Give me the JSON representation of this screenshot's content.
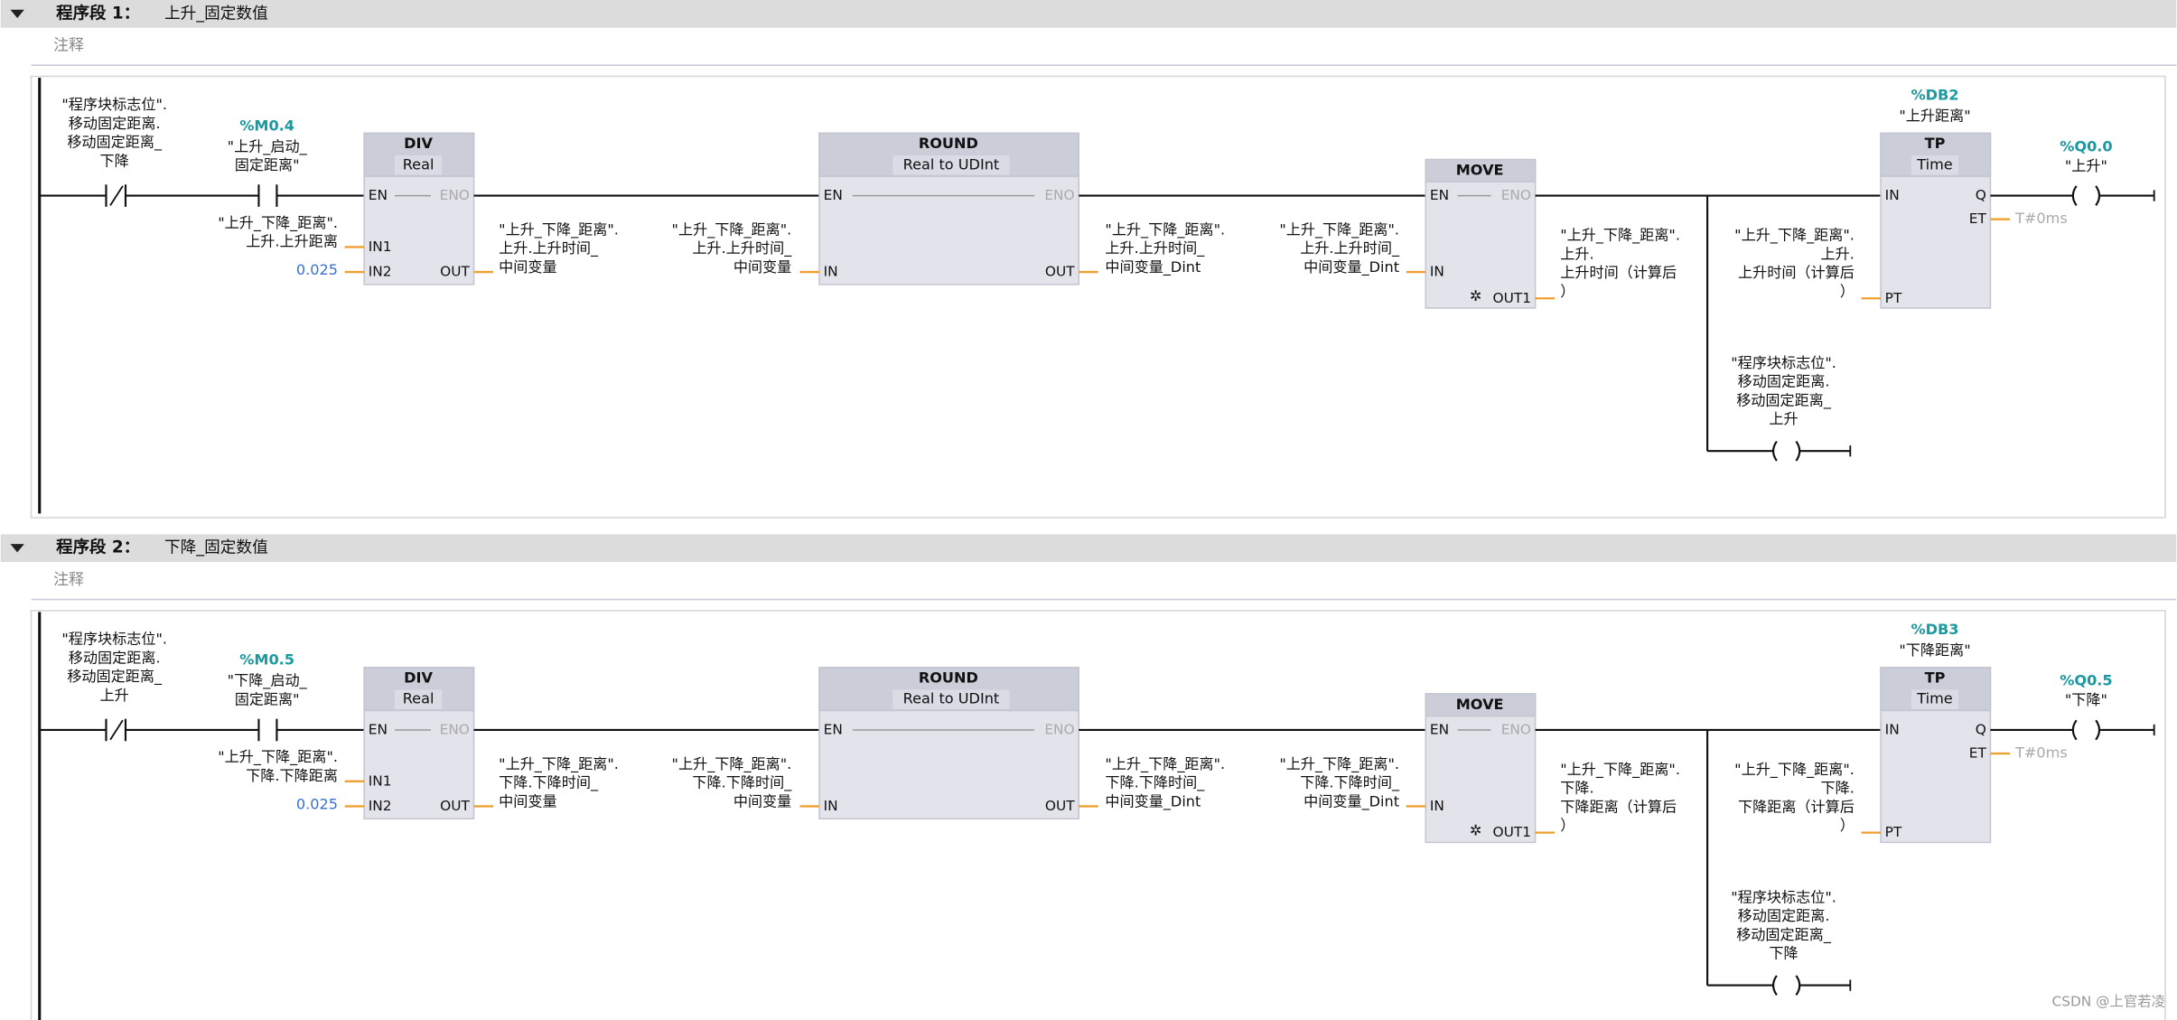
{
  "networks": [
    {
      "header": {
        "number": "程序段 1：",
        "name": "上升_固定数值"
      },
      "comment": "注释",
      "contact_nc": {
        "lines": [
          "\"程序块标志位\".",
          "移动固定距离.",
          "移动固定距离_",
          "下降"
        ]
      },
      "contact_no": {
        "address": "%M0.4",
        "lines": [
          "\"上升_启动_",
          "固定距离\""
        ]
      },
      "div": {
        "title": "DIV",
        "type": "Real",
        "pins": {
          "en": "EN",
          "eno": "ENO",
          "in1": "IN1",
          "in2": "IN2",
          "out": "OUT"
        },
        "in1": [
          "\"上升_下降_距离\".",
          "上升.上升距离"
        ],
        "in2": "0.025",
        "out": [
          "\"上升_下降_距离\".",
          "上升.上升时间_",
          "中间变量"
        ]
      },
      "round": {
        "title": "ROUND",
        "type": "Real to UDInt",
        "pins": {
          "en": "EN",
          "eno": "ENO",
          "in": "IN",
          "out": "OUT"
        },
        "in": [
          "\"上升_下降_距离\".",
          "上升.上升时间_",
          "中间变量"
        ],
        "out": [
          "\"上升_下降_距离\".",
          "上升.上升时间_",
          "中间变量_Dint"
        ]
      },
      "move": {
        "title": "MOVE",
        "pins": {
          "en": "EN",
          "eno": "ENO",
          "in": "IN",
          "out1": "OUT1"
        },
        "in": [
          "\"上升_下降_距离\".",
          "上升.上升时间_",
          "中间变量_Dint"
        ],
        "out1": [
          "\"上升_下降_距离\".",
          "上升.",
          "上升时间（计算后",
          "）"
        ]
      },
      "tp": {
        "db": "%DB2",
        "name": "\"上升距离\"",
        "title": "TP",
        "type": "Time",
        "pins": {
          "in": "IN",
          "q": "Q",
          "et": "ET",
          "pt": "PT"
        },
        "et": "T#0ms",
        "pt": [
          "\"上升_下降_距离\".",
          "上升.",
          "上升时间（计算后",
          "）"
        ]
      },
      "coil": {
        "address": "%Q0.0",
        "name": "\"上升\""
      },
      "branch_coil": {
        "lines": [
          "\"程序块标志位\".",
          "移动固定距离.",
          "移动固定距离_",
          "上升"
        ]
      }
    },
    {
      "header": {
        "number": "程序段 2：",
        "name": "下降_固定数值"
      },
      "comment": "注释",
      "contact_nc": {
        "lines": [
          "\"程序块标志位\".",
          "移动固定距离.",
          "移动固定距离_",
          "上升"
        ]
      },
      "contact_no": {
        "address": "%M0.5",
        "lines": [
          "\"下降_启动_",
          "固定距离\""
        ]
      },
      "div": {
        "title": "DIV",
        "type": "Real",
        "pins": {
          "en": "EN",
          "eno": "ENO",
          "in1": "IN1",
          "in2": "IN2",
          "out": "OUT"
        },
        "in1": [
          "\"上升_下降_距离\".",
          "下降.下降距离"
        ],
        "in2": "0.025",
        "out": [
          "\"上升_下降_距离\".",
          "下降.下降时间_",
          "中间变量"
        ]
      },
      "round": {
        "title": "ROUND",
        "type": "Real to UDInt",
        "pins": {
          "en": "EN",
          "eno": "ENO",
          "in": "IN",
          "out": "OUT"
        },
        "in": [
          "\"上升_下降_距离\".",
          "下降.下降时间_",
          "中间变量"
        ],
        "out": [
          "\"上升_下降_距离\".",
          "下降.下降时间_",
          "中间变量_Dint"
        ]
      },
      "move": {
        "title": "MOVE",
        "pins": {
          "en": "EN",
          "eno": "ENO",
          "in": "IN",
          "out1": "OUT1"
        },
        "in": [
          "\"上升_下降_距离\".",
          "下降.下降时间_",
          "中间变量_Dint"
        ],
        "out1": [
          "\"上升_下降_距离\".",
          "下降.",
          "下降距离（计算后",
          "）"
        ]
      },
      "tp": {
        "db": "%DB3",
        "name": "\"下降距离\"",
        "title": "TP",
        "type": "Time",
        "pins": {
          "in": "IN",
          "q": "Q",
          "et": "ET",
          "pt": "PT"
        },
        "et": "T#0ms",
        "pt": [
          "\"上升_下降_距离\".",
          "下降.",
          "下降距离（计算后",
          "）"
        ]
      },
      "coil": {
        "address": "%Q0.5",
        "name": "\"下降\""
      },
      "branch_coil": {
        "lines": [
          "\"程序块标志位\".",
          "移动固定距离.",
          "移动固定距离_",
          "下降"
        ]
      }
    }
  ],
  "watermark": "CSDN @上官若凌"
}
